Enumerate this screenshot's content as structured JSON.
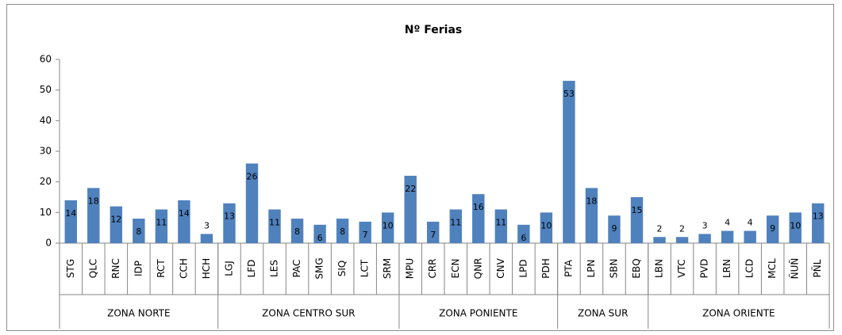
{
  "chart_data": {
    "type": "bar",
    "title": "Nº Ferias",
    "color": "#4f81bd",
    "ylim": [
      0,
      60
    ],
    "yticks": [
      0,
      10,
      20,
      30,
      40,
      50,
      60
    ],
    "grid": false,
    "groups": [
      {
        "name": "ZONA NORTE",
        "categories": [
          "STG",
          "QLC",
          "RNC",
          "IDP",
          "RCT",
          "CCH",
          "HCH"
        ],
        "values": [
          14,
          18,
          12,
          8,
          11,
          14,
          3
        ]
      },
      {
        "name": "ZONA CENTRO SUR",
        "categories": [
          "LGJ",
          "LFD",
          "LES",
          "PAC",
          "SMG",
          "SIQ",
          "LCT",
          "SRM"
        ],
        "values": [
          13,
          26,
          11,
          8,
          6,
          8,
          7,
          10
        ]
      },
      {
        "name": "ZONA PONIENTE",
        "categories": [
          "MPU",
          "CRR",
          "ECN",
          "QNR",
          "CNV",
          "LPD",
          "PDH"
        ],
        "values": [
          22,
          7,
          11,
          16,
          11,
          6,
          10
        ]
      },
      {
        "name": "ZONA SUR",
        "categories": [
          "PTA",
          "LPN",
          "SBN",
          "EBQ"
        ],
        "values": [
          53,
          18,
          9,
          15
        ]
      },
      {
        "name": "ZONA ORIENTE",
        "categories": [
          "LBN",
          "VTC",
          "PVD",
          "LRN",
          "LCD",
          "MCL",
          "ÑUÑ",
          "PÑL"
        ],
        "values": [
          2,
          2,
          3,
          4,
          4,
          9,
          10,
          13
        ]
      }
    ]
  }
}
